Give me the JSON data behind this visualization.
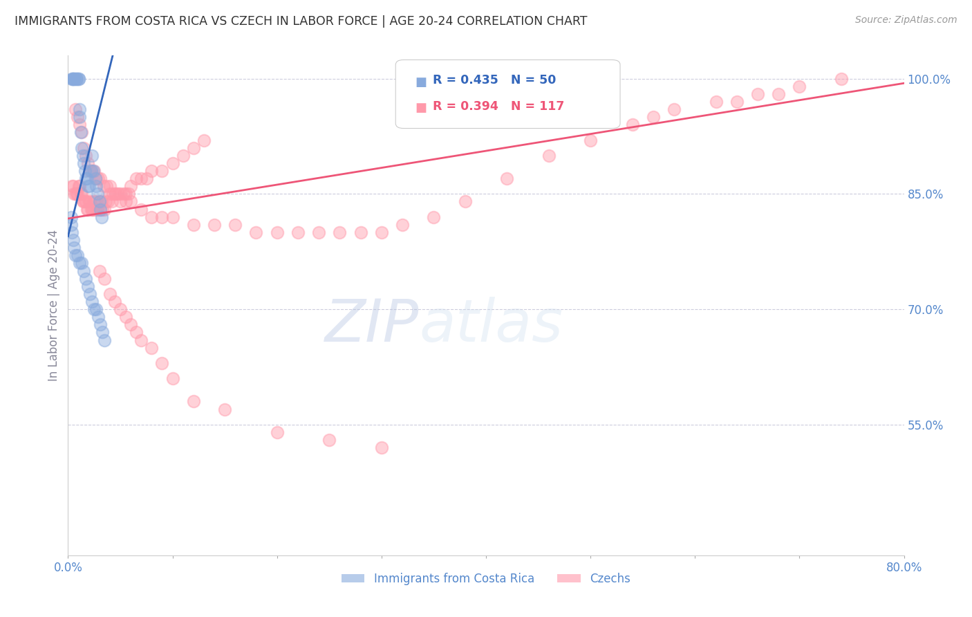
{
  "title": "IMMIGRANTS FROM COSTA RICA VS CZECH IN LABOR FORCE | AGE 20-24 CORRELATION CHART",
  "source": "Source: ZipAtlas.com",
  "ylabel": "In Labor Force | Age 20-24",
  "watermark": "ZIPatlas",
  "xmin": 0.0,
  "xmax": 0.8,
  "ymin": 0.38,
  "ymax": 1.03,
  "yticks": [
    0.55,
    0.7,
    0.85,
    1.0
  ],
  "ytick_labels": [
    "55.0%",
    "70.0%",
    "85.0%",
    "100.0%"
  ],
  "legend_blue_r": "R = 0.435",
  "legend_blue_n": "N = 50",
  "legend_pink_r": "R = 0.394",
  "legend_pink_n": "N = 117",
  "blue_color": "#88AADD",
  "pink_color": "#FF99AA",
  "blue_line_color": "#3366BB",
  "pink_line_color": "#EE5577",
  "grid_color": "#CCCCDD",
  "label_color": "#5588CC",
  "title_color": "#333333",
  "blue_slope": 5.5,
  "blue_intercept": 0.795,
  "pink_slope": 0.22,
  "pink_intercept": 0.818,
  "blue_points_x": [
    0.004,
    0.004,
    0.005,
    0.005,
    0.006,
    0.007,
    0.008,
    0.008,
    0.01,
    0.01,
    0.011,
    0.011,
    0.012,
    0.013,
    0.014,
    0.015,
    0.016,
    0.017,
    0.018,
    0.019,
    0.02,
    0.022,
    0.023,
    0.024,
    0.026,
    0.027,
    0.028,
    0.03,
    0.031,
    0.032,
    0.003,
    0.003,
    0.004,
    0.005,
    0.006,
    0.007,
    0.009,
    0.011,
    0.013,
    0.015,
    0.017,
    0.019,
    0.021,
    0.023,
    0.025,
    0.027,
    0.029,
    0.031,
    0.033,
    0.035
  ],
  "blue_points_y": [
    1.0,
    1.0,
    1.0,
    1.0,
    1.0,
    1.0,
    1.0,
    1.0,
    1.0,
    1.0,
    0.96,
    0.95,
    0.93,
    0.91,
    0.9,
    0.89,
    0.88,
    0.87,
    0.87,
    0.86,
    0.86,
    0.88,
    0.9,
    0.88,
    0.87,
    0.86,
    0.85,
    0.84,
    0.83,
    0.82,
    0.82,
    0.81,
    0.8,
    0.79,
    0.78,
    0.77,
    0.77,
    0.76,
    0.76,
    0.75,
    0.74,
    0.73,
    0.72,
    0.71,
    0.7,
    0.7,
    0.69,
    0.68,
    0.67,
    0.66
  ],
  "pink_points_x": [
    0.004,
    0.005,
    0.006,
    0.007,
    0.008,
    0.009,
    0.01,
    0.011,
    0.012,
    0.013,
    0.014,
    0.015,
    0.016,
    0.017,
    0.018,
    0.019,
    0.02,
    0.021,
    0.022,
    0.023,
    0.024,
    0.025,
    0.026,
    0.027,
    0.028,
    0.03,
    0.031,
    0.032,
    0.033,
    0.035,
    0.036,
    0.038,
    0.04,
    0.042,
    0.045,
    0.048,
    0.05,
    0.053,
    0.055,
    0.058,
    0.06,
    0.065,
    0.07,
    0.075,
    0.08,
    0.09,
    0.1,
    0.11,
    0.12,
    0.13,
    0.007,
    0.009,
    0.011,
    0.013,
    0.015,
    0.017,
    0.019,
    0.021,
    0.023,
    0.025,
    0.027,
    0.029,
    0.031,
    0.034,
    0.037,
    0.04,
    0.043,
    0.046,
    0.05,
    0.055,
    0.06,
    0.07,
    0.08,
    0.09,
    0.1,
    0.12,
    0.14,
    0.16,
    0.18,
    0.2,
    0.22,
    0.24,
    0.26,
    0.28,
    0.3,
    0.32,
    0.35,
    0.38,
    0.42,
    0.46,
    0.5,
    0.54,
    0.58,
    0.62,
    0.66,
    0.7,
    0.74,
    0.56,
    0.64,
    0.68,
    0.03,
    0.035,
    0.04,
    0.045,
    0.05,
    0.055,
    0.06,
    0.065,
    0.07,
    0.08,
    0.09,
    0.1,
    0.12,
    0.15,
    0.2,
    0.25,
    0.3
  ],
  "pink_points_y": [
    0.86,
    0.86,
    0.85,
    0.85,
    0.85,
    0.85,
    0.86,
    0.86,
    0.85,
    0.85,
    0.84,
    0.84,
    0.84,
    0.84,
    0.83,
    0.83,
    0.84,
    0.84,
    0.83,
    0.83,
    0.83,
    0.84,
    0.84,
    0.83,
    0.83,
    0.84,
    0.83,
    0.84,
    0.83,
    0.83,
    0.84,
    0.84,
    0.85,
    0.84,
    0.85,
    0.85,
    0.84,
    0.85,
    0.85,
    0.85,
    0.86,
    0.87,
    0.87,
    0.87,
    0.88,
    0.88,
    0.89,
    0.9,
    0.91,
    0.92,
    0.96,
    0.95,
    0.94,
    0.93,
    0.91,
    0.9,
    0.89,
    0.88,
    0.88,
    0.88,
    0.87,
    0.87,
    0.87,
    0.86,
    0.86,
    0.86,
    0.85,
    0.85,
    0.85,
    0.84,
    0.84,
    0.83,
    0.82,
    0.82,
    0.82,
    0.81,
    0.81,
    0.81,
    0.8,
    0.8,
    0.8,
    0.8,
    0.8,
    0.8,
    0.8,
    0.81,
    0.82,
    0.84,
    0.87,
    0.9,
    0.92,
    0.94,
    0.96,
    0.97,
    0.98,
    0.99,
    1.0,
    0.95,
    0.97,
    0.98,
    0.75,
    0.74,
    0.72,
    0.71,
    0.7,
    0.69,
    0.68,
    0.67,
    0.66,
    0.65,
    0.63,
    0.61,
    0.58,
    0.57,
    0.54,
    0.53,
    0.52
  ]
}
